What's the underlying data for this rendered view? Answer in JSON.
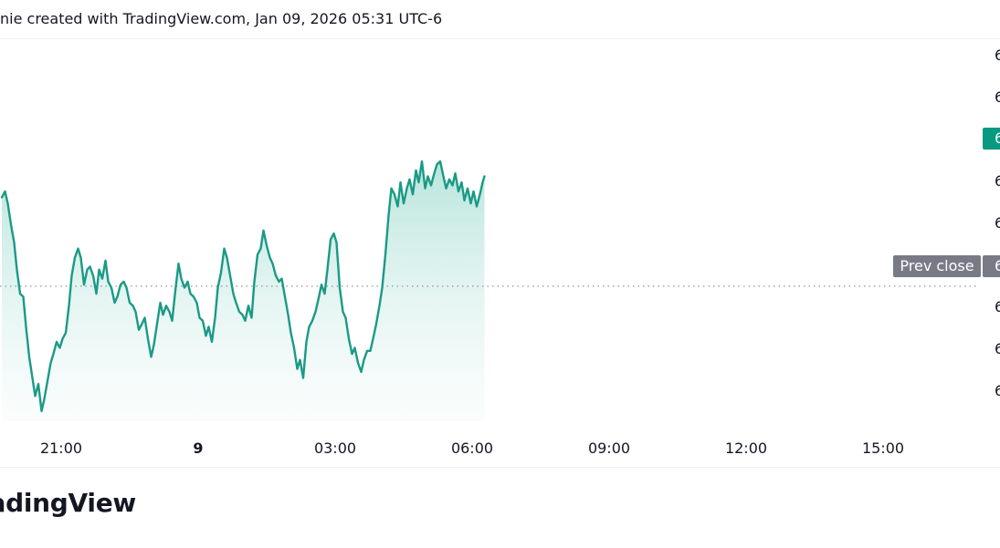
{
  "header": {
    "text": "nie created with TradingView.com, Jan 09, 2026 05:31 UTC-6"
  },
  "footer": {
    "logo_text": "radingView"
  },
  "colors": {
    "line": "#1a9a86",
    "fill_top": "#b9e4dc",
    "fill_bottom": "#eef9f7",
    "prev_close_badge": "#787b86",
    "last_price_badge": "#089981",
    "axis_text": "#131722"
  },
  "chart_data": {
    "type": "area",
    "title": "",
    "xlabel": "",
    "ylabel": "",
    "grid": false,
    "x_tick_labels": [
      "21:00",
      "9",
      "03:00",
      "06:00",
      "09:00",
      "12:00",
      "15:00"
    ],
    "y_tick_labels": [
      "6",
      "6",
      "6",
      "6",
      "6",
      "6",
      "6",
      "6",
      "6"
    ],
    "ylim": [
      0,
      1
    ],
    "prev_close": {
      "label": "Prev close",
      "price_label": "6",
      "value": 0.455
    },
    "last_price": {
      "price_label": "6",
      "value": 0.82
    },
    "x_unit": "hours relative to 21:00",
    "series": [
      {
        "x": [
          -1.3,
          -1.23,
          -1.17,
          -1.1,
          -1.03,
          -0.97,
          -0.9,
          -0.83,
          -0.77,
          -0.7,
          -0.63,
          -0.57,
          -0.5,
          -0.43,
          -0.37,
          -0.3,
          -0.23,
          -0.17,
          -0.1,
          -0.03,
          0.03,
          0.1,
          0.17,
          0.23,
          0.3,
          0.37,
          0.43,
          0.5,
          0.57,
          0.63,
          0.7,
          0.77,
          0.83,
          0.9,
          0.97,
          1.03,
          1.1,
          1.17,
          1.23,
          1.3,
          1.37,
          1.43,
          1.5,
          1.57,
          1.63,
          1.7,
          1.77,
          1.83,
          1.9,
          1.97,
          2.03,
          2.1,
          2.17,
          2.23,
          2.3,
          2.37,
          2.43,
          2.5,
          2.57,
          2.63,
          2.7,
          2.77,
          2.83,
          2.9,
          2.97,
          3.03,
          3.1,
          3.17,
          3.23,
          3.3,
          3.37,
          3.43,
          3.5,
          3.57,
          3.63,
          3.7,
          3.77,
          3.83,
          3.9,
          3.97,
          4.03,
          4.1,
          4.17,
          4.23,
          4.3,
          4.37,
          4.43,
          4.5,
          4.57,
          4.63,
          4.7,
          4.77,
          4.83,
          4.9,
          4.97,
          5.03,
          5.1,
          5.17,
          5.23,
          5.3,
          5.37,
          5.43,
          5.5,
          5.57,
          5.63,
          5.7,
          5.77,
          5.83,
          5.9,
          5.97,
          6.03,
          6.1,
          6.17,
          6.23,
          6.3,
          6.37,
          6.43,
          6.5,
          6.57,
          6.63,
          6.7,
          6.77,
          6.83,
          6.9,
          6.97,
          7.03,
          7.1,
          7.17,
          7.23,
          7.3,
          7.37,
          7.43,
          7.5,
          7.57,
          7.63,
          7.7,
          7.77,
          7.83,
          7.9,
          7.97,
          8.03,
          8.1,
          8.17,
          8.23,
          8.3,
          8.37,
          8.43,
          8.5,
          8.57,
          8.63,
          8.7,
          8.77,
          8.83,
          8.9,
          8.97,
          9.03,
          9.1,
          9.17,
          9.23,
          9.27
        ],
        "values": [
          0.75,
          0.77,
          0.73,
          0.66,
          0.6,
          0.51,
          0.43,
          0.42,
          0.32,
          0.22,
          0.15,
          0.09,
          0.13,
          0.04,
          0.08,
          0.14,
          0.2,
          0.23,
          0.27,
          0.25,
          0.28,
          0.3,
          0.39,
          0.49,
          0.55,
          0.58,
          0.55,
          0.46,
          0.51,
          0.52,
          0.49,
          0.43,
          0.51,
          0.48,
          0.54,
          0.47,
          0.45,
          0.4,
          0.42,
          0.46,
          0.47,
          0.45,
          0.4,
          0.39,
          0.37,
          0.31,
          0.33,
          0.35,
          0.28,
          0.22,
          0.26,
          0.33,
          0.4,
          0.36,
          0.39,
          0.37,
          0.34,
          0.44,
          0.53,
          0.48,
          0.45,
          0.47,
          0.43,
          0.42,
          0.4,
          0.35,
          0.34,
          0.29,
          0.32,
          0.27,
          0.35,
          0.45,
          0.5,
          0.58,
          0.55,
          0.49,
          0.43,
          0.4,
          0.37,
          0.36,
          0.34,
          0.39,
          0.35,
          0.47,
          0.56,
          0.58,
          0.64,
          0.59,
          0.55,
          0.53,
          0.49,
          0.47,
          0.48,
          0.42,
          0.36,
          0.3,
          0.25,
          0.18,
          0.21,
          0.15,
          0.27,
          0.32,
          0.34,
          0.37,
          0.41,
          0.46,
          0.43,
          0.51,
          0.61,
          0.63,
          0.6,
          0.45,
          0.37,
          0.35,
          0.28,
          0.23,
          0.25,
          0.2,
          0.17,
          0.21,
          0.24,
          0.24,
          0.28,
          0.33,
          0.39,
          0.45,
          0.56,
          0.69,
          0.78,
          0.76,
          0.72,
          0.8,
          0.73,
          0.78,
          0.81,
          0.76,
          0.84,
          0.8,
          0.87,
          0.78,
          0.82,
          0.79,
          0.83,
          0.86,
          0.87,
          0.82,
          0.78,
          0.81,
          0.79,
          0.83,
          0.77,
          0.8,
          0.74,
          0.78,
          0.73,
          0.77,
          0.72,
          0.76,
          0.8,
          0.82
        ]
      }
    ]
  }
}
